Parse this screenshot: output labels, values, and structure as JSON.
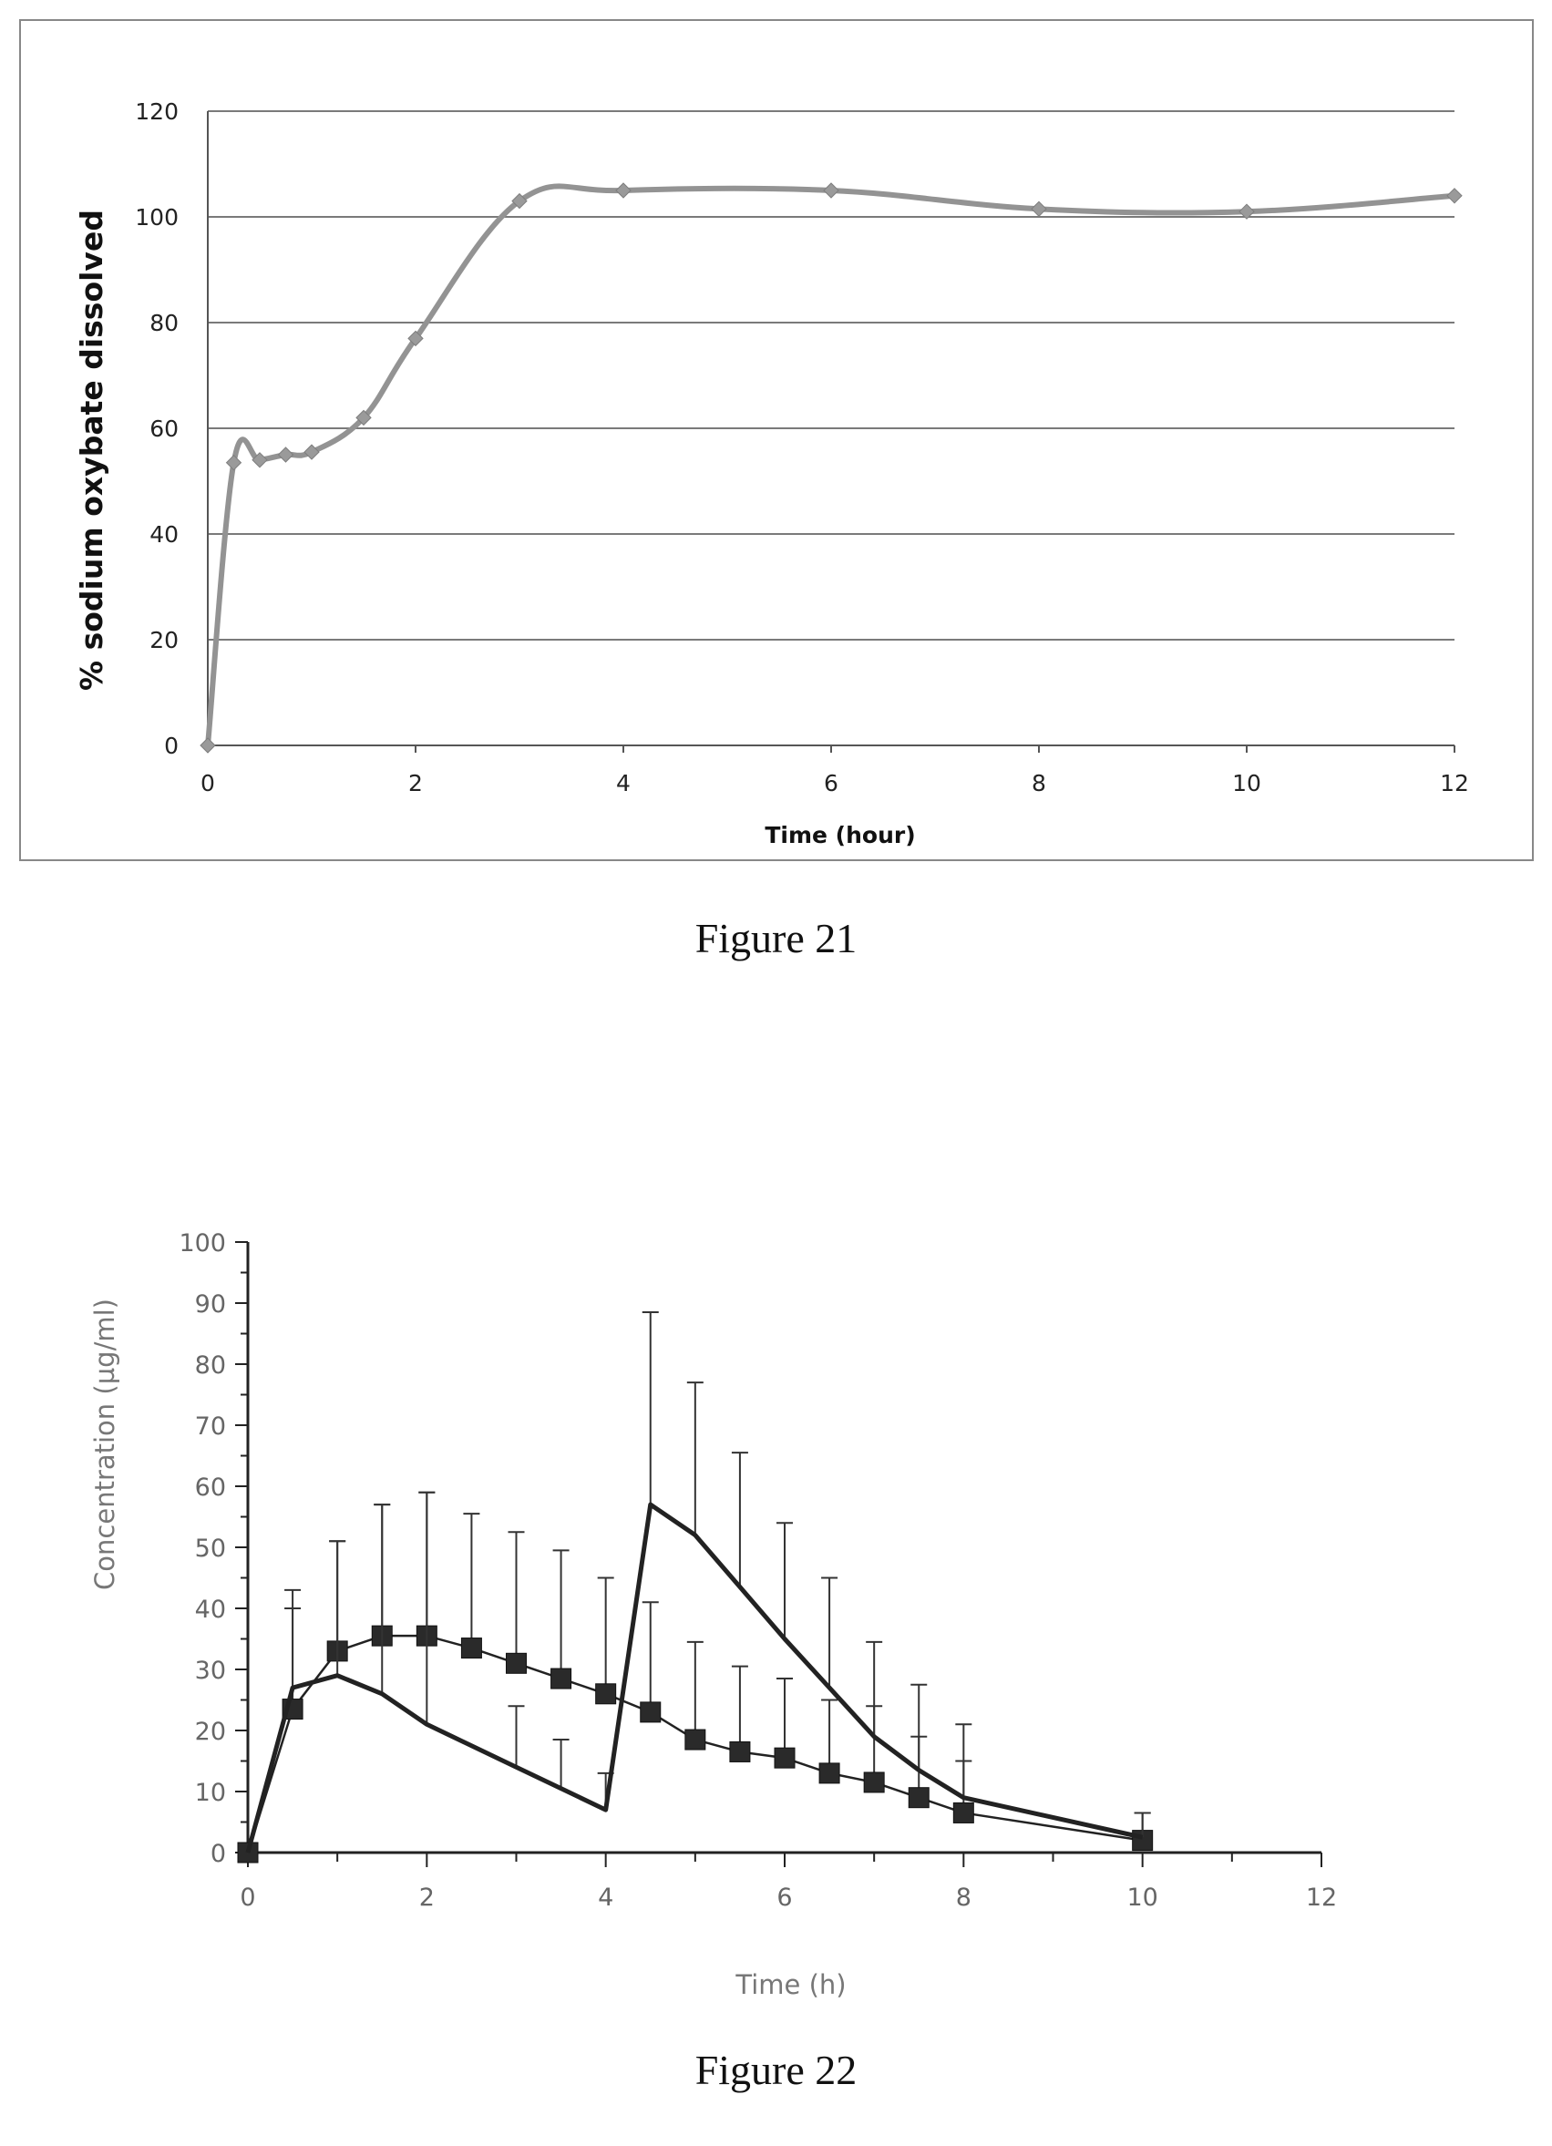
{
  "chart_data": [
    {
      "type": "line",
      "figure_caption": "Figure 21",
      "title": "",
      "xlabel": "Time (hour)",
      "ylabel": "% sodium oxybate dissolved",
      "xlim": [
        0,
        12
      ],
      "ylim": [
        0,
        120
      ],
      "xticks": [
        0,
        2,
        4,
        6,
        8,
        10,
        12
      ],
      "yticks": [
        0,
        20,
        40,
        60,
        80,
        100,
        120
      ],
      "grid": "horizontal",
      "legend": "none",
      "colors": {
        "series": "#939393",
        "marker": "#9a9a9a"
      },
      "series": [
        {
          "x": [
            0,
            0.25,
            0.5,
            0.75,
            1,
            1.5,
            2,
            3,
            4,
            6,
            8,
            10,
            12
          ],
          "y": [
            0,
            53.5,
            54,
            55,
            55.5,
            62,
            77,
            103,
            105,
            105,
            101.5,
            101,
            104
          ]
        }
      ]
    },
    {
      "type": "line",
      "figure_caption": "Figure 22",
      "title": "",
      "xlabel": "Time (h)",
      "ylabel": "Concentration (µg/ml)",
      "xlim": [
        0,
        12
      ],
      "ylim": [
        0,
        100
      ],
      "xticks": [
        0,
        2,
        4,
        6,
        8,
        10,
        12
      ],
      "yticks": [
        0,
        10,
        20,
        30,
        40,
        50,
        60,
        70,
        80,
        90,
        100
      ],
      "grid": "off",
      "legend": "none",
      "colors": {
        "series": "#222222",
        "error_bar": "#333333"
      },
      "series": [
        {
          "marker": "square",
          "x": [
            0,
            0.5,
            1,
            1.5,
            2,
            2.5,
            3,
            3.5,
            4,
            4.5,
            5,
            5.5,
            6,
            6.5,
            7,
            7.5,
            8,
            10
          ],
          "y": [
            0,
            23.5,
            33,
            35.5,
            35.5,
            33.5,
            31,
            28.5,
            26,
            23,
            18.5,
            16.5,
            15.5,
            13,
            11.5,
            9,
            6.5,
            2
          ],
          "error": [
            0,
            16.5,
            18,
            21.5,
            23.5,
            22,
            21.5,
            21,
            19,
            18,
            16,
            14,
            13,
            12,
            12.5,
            10,
            8.5,
            4.5
          ]
        },
        {
          "marker": "none",
          "x": [
            0,
            0.5,
            1,
            1.5,
            2,
            3,
            3.5,
            4,
            4.5,
            5,
            5.5,
            6,
            6.5,
            7,
            7.5,
            8,
            10
          ],
          "y": [
            0,
            27,
            29,
            26,
            21,
            14,
            10.5,
            7,
            57,
            52,
            43.5,
            35,
            27,
            19,
            13.5,
            9,
            2.5
          ],
          "error": [
            0,
            16,
            22,
            31,
            38,
            10,
            8,
            6,
            31.5,
            25,
            22,
            19,
            18,
            15.5,
            14,
            12,
            4
          ]
        }
      ]
    }
  ]
}
